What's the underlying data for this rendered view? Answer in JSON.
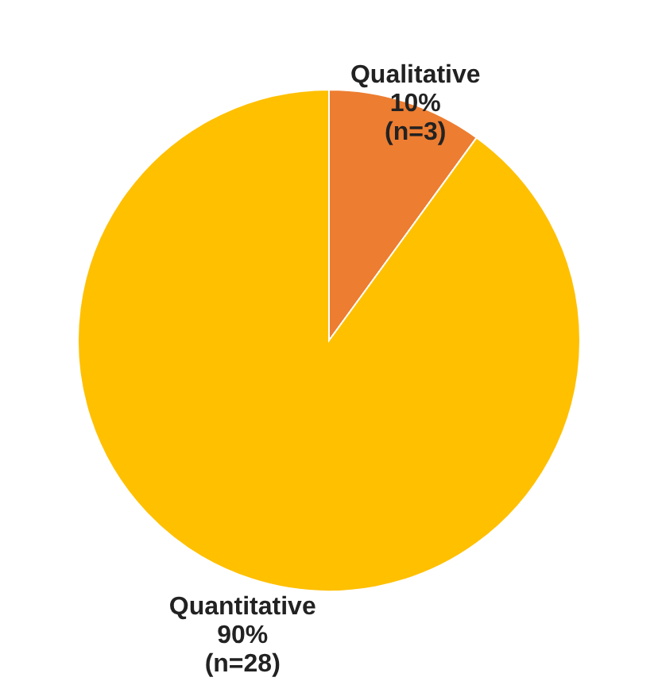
{
  "chart_data": {
    "type": "pie",
    "categories": [
      "Qualitative",
      "Quantitative"
    ],
    "values": [
      10,
      90
    ],
    "colors": [
      "#ed7d31",
      "#ffc000"
    ],
    "value_labels": [
      "10%\n(n=3)",
      "90%\n(n=28)"
    ],
    "legend": false
  }
}
